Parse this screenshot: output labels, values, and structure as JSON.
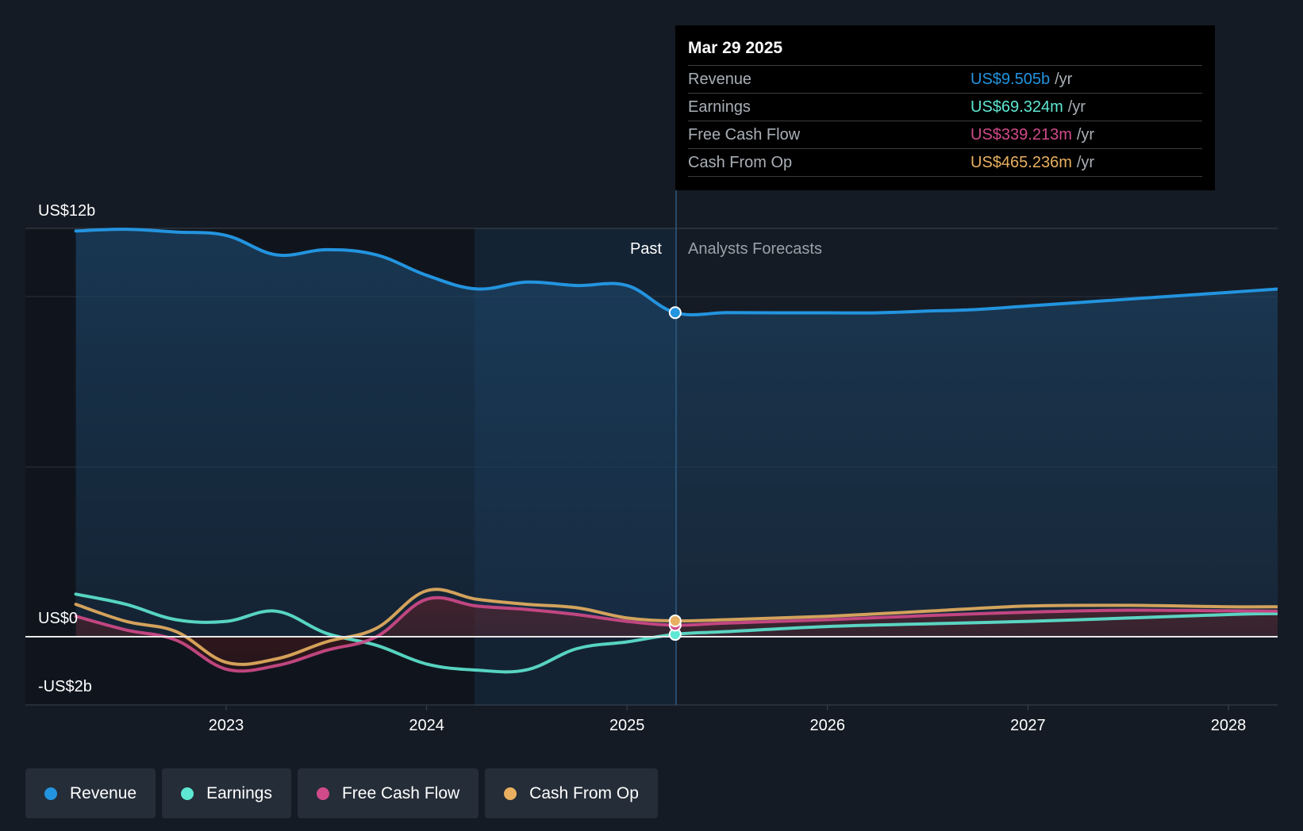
{
  "chart_data": {
    "type": "line",
    "title": "",
    "y_axis_labels": [
      "US$12b",
      "US$0",
      "-US$2b"
    ],
    "ylim": [
      -2,
      12
    ],
    "x_ticks": [
      "2023",
      "2024",
      "2025",
      "2026",
      "2027",
      "2028"
    ],
    "regions": {
      "past_label": "Past",
      "forecast_label": "Analysts Forecasts"
    },
    "series": [
      {
        "name": "Revenue",
        "color": "#2394df",
        "fill": true,
        "x": [
          2022.25,
          2022.5,
          2022.75,
          2023.0,
          2023.25,
          2023.5,
          2023.75,
          2024.0,
          2024.25,
          2024.5,
          2024.75,
          2025.0,
          2025.24,
          2025.5,
          2025.75,
          2026.0,
          2026.25,
          2026.5,
          2026.75,
          2027.0,
          2027.25,
          2027.5,
          2027.75,
          2028.0,
          2028.25
        ],
        "values": [
          11.9,
          11.95,
          11.87,
          11.77,
          11.2,
          11.35,
          11.2,
          10.6,
          10.2,
          10.4,
          10.3,
          10.3,
          9.505,
          9.505,
          9.5,
          9.5,
          9.5,
          9.55,
          9.6,
          9.7,
          9.8,
          9.9,
          10.0,
          10.1,
          10.2
        ]
      },
      {
        "name": "Earnings",
        "color": "#5ee8d3",
        "fill": false,
        "x": [
          2022.25,
          2022.5,
          2022.75,
          2023.0,
          2023.25,
          2023.5,
          2023.75,
          2024.0,
          2024.25,
          2024.5,
          2024.75,
          2025.0,
          2025.24,
          2025.5,
          2026.0,
          2026.5,
          2027.0,
          2027.5,
          2028.0,
          2028.25
        ],
        "values": [
          1.25,
          0.95,
          0.5,
          0.45,
          0.75,
          0.1,
          -0.25,
          -0.8,
          -0.98,
          -0.97,
          -0.35,
          -0.15,
          0.069,
          0.15,
          0.3,
          0.38,
          0.45,
          0.55,
          0.65,
          0.68
        ]
      },
      {
        "name": "Free Cash Flow",
        "color": "#d14a8a",
        "fill": false,
        "x": [
          2022.25,
          2022.5,
          2022.75,
          2023.0,
          2023.25,
          2023.5,
          2023.75,
          2024.0,
          2024.25,
          2024.5,
          2024.75,
          2025.0,
          2025.24,
          2025.5,
          2026.0,
          2026.5,
          2027.0,
          2027.5,
          2028.0,
          2028.25
        ],
        "values": [
          0.6,
          0.2,
          -0.1,
          -0.95,
          -0.85,
          -0.4,
          0,
          1.1,
          0.9,
          0.8,
          0.65,
          0.45,
          0.339,
          0.4,
          0.5,
          0.62,
          0.72,
          0.78,
          0.76,
          0.75
        ]
      },
      {
        "name": "Cash From Op",
        "color": "#e8b060",
        "fill": false,
        "x": [
          2022.25,
          2022.5,
          2022.75,
          2023.0,
          2023.25,
          2023.5,
          2023.75,
          2024.0,
          2024.25,
          2024.5,
          2024.75,
          2025.0,
          2025.24,
          2025.5,
          2026.0,
          2026.5,
          2027.0,
          2027.5,
          2028.0,
          2028.25
        ],
        "values": [
          0.95,
          0.45,
          0.15,
          -0.75,
          -0.65,
          -0.15,
          0.25,
          1.35,
          1.1,
          0.95,
          0.85,
          0.55,
          0.465,
          0.5,
          0.6,
          0.75,
          0.9,
          0.92,
          0.88,
          0.88
        ]
      }
    ],
    "marker_x": 2025.24
  },
  "tooltip": {
    "date": "Mar 29 2025",
    "rows": [
      {
        "name": "Revenue",
        "value": "US$9.505b",
        "unit": "/yr",
        "color": "#2394df"
      },
      {
        "name": "Earnings",
        "value": "US$69.324m",
        "unit": "/yr",
        "color": "#5ee8d3"
      },
      {
        "name": "Free Cash Flow",
        "value": "US$339.213m",
        "unit": "/yr",
        "color": "#d14a8a"
      },
      {
        "name": "Cash From Op",
        "value": "US$465.236m",
        "unit": "/yr",
        "color": "#e8b060"
      }
    ]
  },
  "legend": [
    {
      "label": "Revenue",
      "color": "#2394df"
    },
    {
      "label": "Earnings",
      "color": "#5ee8d3"
    },
    {
      "label": "Free Cash Flow",
      "color": "#d14a8a"
    },
    {
      "label": "Cash From Op",
      "color": "#e8b060"
    }
  ]
}
